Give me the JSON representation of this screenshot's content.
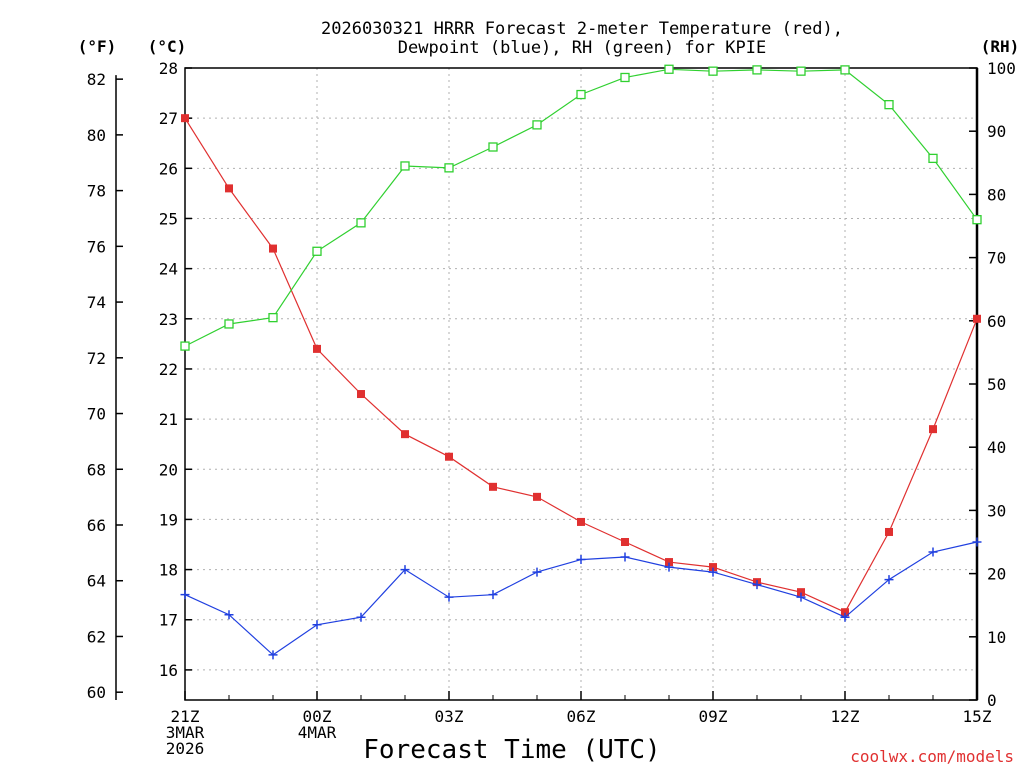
{
  "chart_data": {
    "type": "line",
    "title_lines": [
      "2026030321 HRRR Forecast 2-meter Temperature (red),",
      "Dewpoint (blue), RH (green) for KPIE"
    ],
    "xlabel": "Forecast Time (UTC)",
    "credit": "coolwx.com/models",
    "units": {
      "fahrenheit": "(°F)",
      "celsius": "(°C)",
      "rh": "(RH)"
    },
    "x_ticks": [
      {
        "index": 0,
        "lines": [
          "21Z",
          "3MAR",
          "2026"
        ]
      },
      {
        "index": 3,
        "lines": [
          "00Z",
          "4MAR"
        ]
      },
      {
        "index": 6,
        "lines": [
          "03Z"
        ]
      },
      {
        "index": 9,
        "lines": [
          "06Z"
        ]
      },
      {
        "index": 12,
        "lines": [
          "09Z"
        ]
      },
      {
        "index": 15,
        "lines": [
          "12Z"
        ]
      },
      {
        "index": 18,
        "lines": [
          "15Z"
        ]
      }
    ],
    "hours": [
      "21Z",
      "22Z",
      "23Z",
      "00Z",
      "01Z",
      "02Z",
      "03Z",
      "04Z",
      "05Z",
      "06Z",
      "07Z",
      "08Z",
      "09Z",
      "10Z",
      "11Z",
      "12Z",
      "13Z",
      "14Z",
      "15Z"
    ],
    "celsius_axis": {
      "min": 15.4,
      "max": 28,
      "ticks": [
        16,
        17,
        18,
        19,
        20,
        21,
        22,
        23,
        24,
        25,
        26,
        27,
        28
      ]
    },
    "fahrenheit_axis": {
      "ticks": [
        60,
        62,
        64,
        66,
        68,
        70,
        72,
        74,
        76,
        78,
        80,
        82
      ]
    },
    "rh_axis": {
      "min": 0,
      "max": 100,
      "ticks": [
        0,
        10,
        20,
        30,
        40,
        50,
        60,
        70,
        80,
        90,
        100
      ]
    },
    "series": [
      {
        "name": "2-meter Temperature",
        "unit": "C",
        "color": "#e03030",
        "marker": "filled-square",
        "values": [
          27.0,
          25.6,
          24.4,
          22.4,
          21.5,
          20.7,
          20.25,
          19.65,
          19.45,
          18.95,
          18.55,
          18.15,
          18.05,
          17.75,
          17.55,
          17.15,
          18.75,
          20.8,
          23.0
        ]
      },
      {
        "name": "Dewpoint",
        "unit": "C",
        "color": "#2040e0",
        "marker": "plus",
        "values": [
          17.5,
          17.1,
          16.3,
          16.9,
          17.05,
          18.0,
          17.45,
          17.5,
          17.95,
          18.2,
          18.25,
          18.05,
          17.95,
          17.7,
          17.45,
          17.05,
          17.8,
          18.35,
          18.55
        ]
      },
      {
        "name": "RH",
        "unit": "%",
        "color": "#30d030",
        "marker": "open-square",
        "values": [
          56,
          59.5,
          60.5,
          71,
          75.5,
          84.5,
          84.2,
          87.5,
          91,
          95.8,
          98.5,
          99.8,
          99.5,
          99.7,
          99.5,
          99.7,
          94.2,
          85.7,
          76
        ]
      }
    ],
    "grid": true
  }
}
